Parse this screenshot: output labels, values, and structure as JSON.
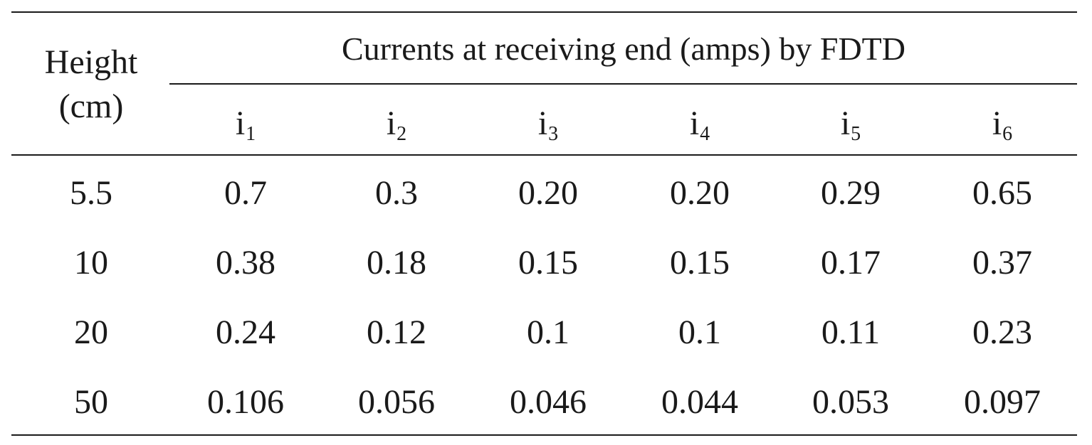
{
  "table": {
    "height_header_line1": "Height",
    "height_header_line2": "(cm)",
    "group_header": "Currents at receiving end (amps) by FDTD",
    "columns": [
      {
        "base": "i",
        "sub": "1"
      },
      {
        "base": "i",
        "sub": "2"
      },
      {
        "base": "i",
        "sub": "3"
      },
      {
        "base": "i",
        "sub": "4"
      },
      {
        "base": "i",
        "sub": "5"
      },
      {
        "base": "i",
        "sub": "6"
      }
    ],
    "rows": [
      {
        "height": "5.5",
        "values": [
          "0.7",
          "0.3",
          "0.20",
          "0.20",
          "0.29",
          "0.65"
        ]
      },
      {
        "height": "10",
        "values": [
          "0.38",
          "0.18",
          "0.15",
          "0.15",
          "0.17",
          "0.37"
        ]
      },
      {
        "height": "20",
        "values": [
          "0.24",
          "0.12",
          "0.1",
          "0.1",
          "0.11",
          "0.23"
        ]
      },
      {
        "height": "50",
        "values": [
          "0.106",
          "0.056",
          "0.046",
          "0.044",
          "0.053",
          "0.097"
        ]
      }
    ]
  }
}
